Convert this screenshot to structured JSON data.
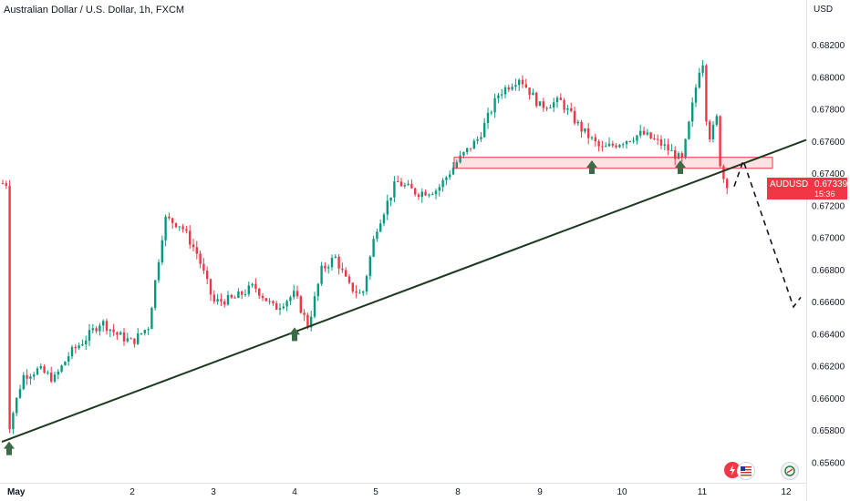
{
  "symbol_title": "Australian Dollar / U.S. Dollar, 1h, FXCM",
  "currency_label": "USD",
  "price_badge": {
    "symbol": "AUDUSD",
    "price": "0.67339",
    "countdown": "15:36"
  },
  "icons": {
    "flash": "flash-news-icon",
    "flag": "us-flag-icon",
    "events": "economic-events-icon"
  },
  "chart_data": {
    "type": "candlestick",
    "title": "Australian Dollar / U.S. Dollar, 1h, FXCM",
    "y_ticks": [
      "0.68200",
      "0.68000",
      "0.67800",
      "0.67600",
      "0.67400",
      "0.67200",
      "0.67000",
      "0.66800",
      "0.66600",
      "0.66400",
      "0.66200",
      "0.66000",
      "0.65800",
      "0.65600"
    ],
    "x_ticks": [
      "May",
      "2",
      "3",
      "4",
      "5",
      "8",
      "9",
      "10",
      "11",
      "12"
    ],
    "ylim": [
      0.6556,
      0.6828
    ],
    "colors": {
      "up": "#089981",
      "down": "#f23645",
      "trendline": "#1e3a1e",
      "arrow": "#3d6b47",
      "zone": "#f23645"
    },
    "price_path": [
      [
        "May",
        0.6578
      ],
      [
        "May",
        0.6614
      ],
      [
        "May",
        0.6618
      ],
      [
        "May",
        0.6612
      ],
      [
        "May",
        0.6628
      ],
      [
        "May",
        0.6637
      ],
      [
        "May",
        0.6648
      ],
      [
        "May",
        0.664
      ],
      [
        "2",
        0.6635
      ],
      [
        "2",
        0.6645
      ],
      [
        "2",
        0.6712
      ],
      [
        "2",
        0.6708
      ],
      [
        "2",
        0.669
      ],
      [
        "3",
        0.666
      ],
      [
        "3",
        0.6662
      ],
      [
        "3",
        0.667
      ],
      [
        "3",
        0.6656
      ],
      [
        "4",
        0.6665
      ],
      [
        "4",
        0.6645
      ],
      [
        "4",
        0.668
      ],
      [
        "4",
        0.6688
      ],
      [
        "4",
        0.667
      ],
      [
        "4",
        0.6664
      ],
      [
        "5",
        0.6705
      ],
      [
        "5",
        0.6735
      ],
      [
        "5",
        0.6728
      ],
      [
        "5",
        0.673
      ],
      [
        "8",
        0.6748
      ],
      [
        "8",
        0.6762
      ],
      [
        "8",
        0.679
      ],
      [
        "8",
        0.68
      ],
      [
        "9",
        0.6782
      ],
      [
        "9",
        0.6785
      ],
      [
        "9",
        0.6768
      ],
      [
        "9",
        0.6755
      ],
      [
        "10",
        0.676
      ],
      [
        "10",
        0.6765
      ],
      [
        "10",
        0.6758
      ],
      [
        "10",
        0.6748
      ],
      [
        "11",
        0.6815
      ],
      [
        "11",
        0.677
      ],
      [
        "11",
        0.676
      ],
      [
        "11",
        0.678
      ],
      [
        "11",
        0.6744
      ],
      [
        "11",
        0.6734
      ]
    ],
    "annotations": {
      "trendline": {
        "from": [
          "May",
          0.6573
        ],
        "to": [
          "12",
          0.6761
        ]
      },
      "resistance_zone": {
        "x_from": "8",
        "x_to": "12",
        "low": 0.6745,
        "high": 0.6749
      },
      "support_arrows": [
        [
          "May",
          0.6571
        ],
        [
          "4",
          0.6642
        ],
        [
          "9",
          0.6746
        ],
        [
          "10",
          0.6746
        ]
      ],
      "projection": [
        [
          "11",
          0.6732
        ],
        [
          "11",
          0.6748
        ],
        [
          "12",
          0.6657
        ],
        [
          "12",
          0.6663
        ]
      ]
    }
  }
}
